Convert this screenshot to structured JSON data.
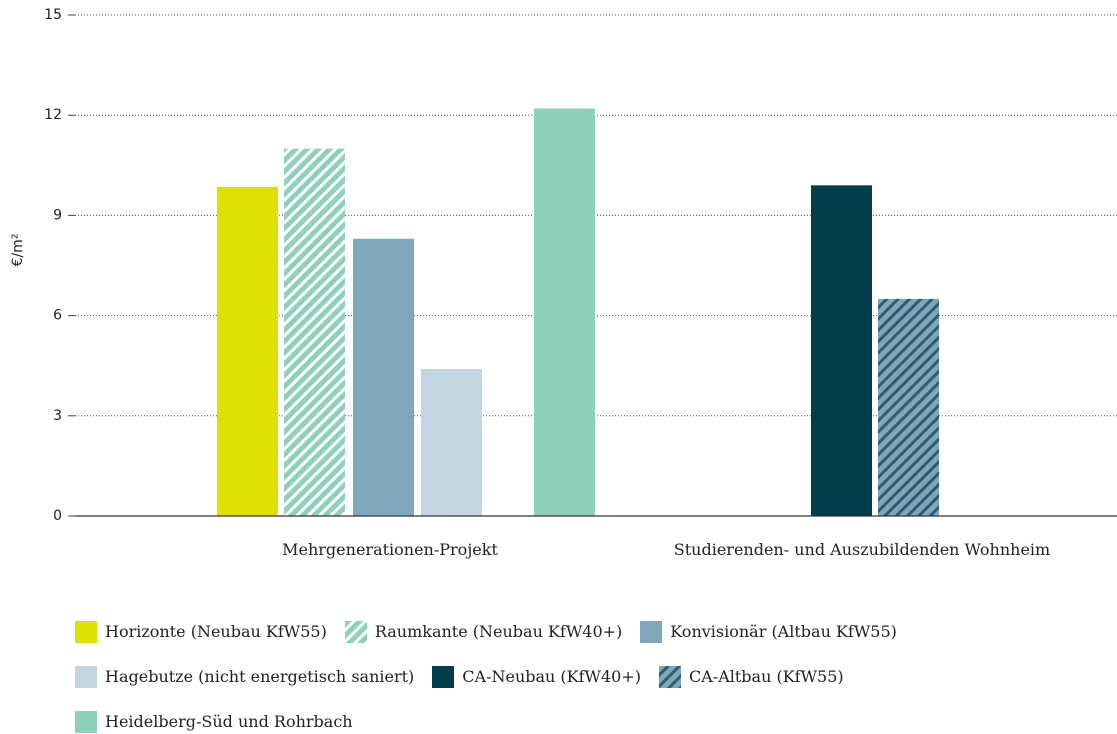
{
  "chart_data": {
    "type": "bar",
    "ylabel": "€/m²",
    "categories": [
      "Mehrgenerationen-Projekt",
      "Studierenden- und Auszubildenden Wohnheim"
    ],
    "series": [
      {
        "name": "Horizonte (Neubau KfW55)",
        "color": "#dde000",
        "values": [
          9.85,
          null
        ]
      },
      {
        "name": "Raumkante (Neubau KfW40+)",
        "color": "#8fd0b8",
        "hatch": "#ffffff",
        "values": [
          11.0,
          null
        ]
      },
      {
        "name": "Konvisionär (Altbau KfW55)",
        "color": "#7fa6ba",
        "values": [
          8.3,
          null
        ]
      },
      {
        "name": "Hagebutze (nicht energetisch saniert)",
        "color": "#c3d5e0",
        "values": [
          4.4,
          null
        ]
      },
      {
        "name": "CA-Neubau (KfW40+)",
        "color": "#003c4a",
        "values": [
          null,
          9.9
        ]
      },
      {
        "name": "CA-Altbau (KfW55)",
        "color": "#7fa6ba",
        "hatch": "#2f5c6e",
        "values": [
          null,
          6.5
        ]
      },
      {
        "name": "Heidelberg-Süd und Rohrbach",
        "color": "#8fd0b8",
        "values": [
          12.2,
          null
        ]
      }
    ],
    "ylim": [
      0,
      15
    ],
    "yticks": [
      0,
      3,
      6,
      9,
      12,
      15
    ],
    "grid": true
  }
}
